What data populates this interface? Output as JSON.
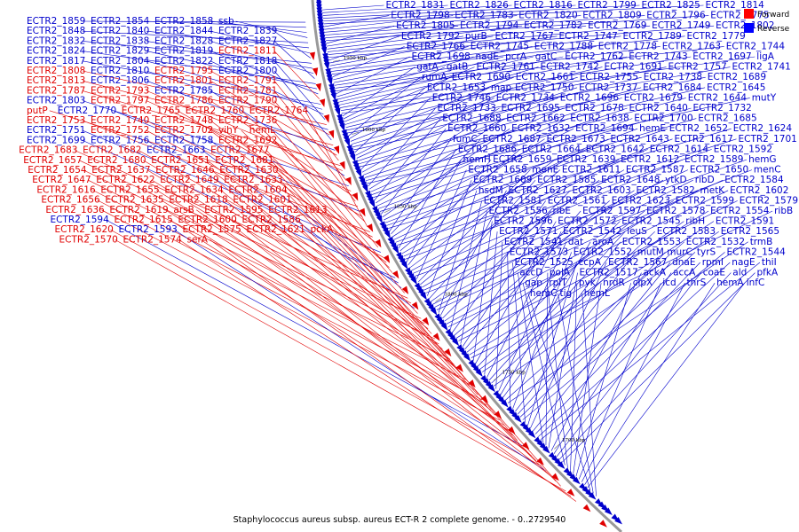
{
  "title": "Staphylococcus aureus subsp. aureus ECT-R 2 complete genome. - 0..2729540",
  "legend": [
    {
      "label": "Forward",
      "color": "#ff0000"
    },
    {
      "label": "Reverse",
      "color": "#0000ff"
    }
  ],
  "colors": {
    "forward": "#e00000",
    "reverse": "#0000cc",
    "backbone": "#999999"
  },
  "ticks": [
    "1950 kbp",
    "1900 kbp",
    "1850 kbp",
    "1800 kbp",
    "1750 kbp",
    "1700 kbp"
  ],
  "left_labels": [
    {
      "t": "ECTR2_1859",
      "s": "r"
    },
    {
      "t": "ECTR2_1854",
      "s": "r"
    },
    {
      "t": "ECTR2_1858",
      "s": "r"
    },
    {
      "t": "ssb",
      "s": "r"
    },
    {
      "t": "ECTR2_1848",
      "s": "r"
    },
    {
      "t": "ECTR2_1840",
      "s": "r"
    },
    {
      "t": "ECTR2_1844",
      "s": "r"
    },
    {
      "t": "ECTR2_1839",
      "s": "r"
    },
    {
      "t": "ECTR2_1832",
      "s": "r"
    },
    {
      "t": "ECTR2_1838",
      "s": "r"
    },
    {
      "t": "ECTR2_1828",
      "s": "r"
    },
    {
      "t": "ECTR2_1827",
      "s": "r"
    },
    {
      "t": "ECTR2_1824",
      "s": "r"
    },
    {
      "t": "ECTR2_1829",
      "s": "r"
    },
    {
      "t": "ECTR2_1819",
      "s": "r"
    },
    {
      "t": "ECTR2_1811",
      "s": "f"
    },
    {
      "t": "ECTR2_1817",
      "s": "r"
    },
    {
      "t": "ECTR2_1804",
      "s": "r"
    },
    {
      "t": "ECTR2_1822",
      "s": "r"
    },
    {
      "t": "ECTR2_1818",
      "s": "r"
    },
    {
      "t": "ECTR2_1808",
      "s": "f"
    },
    {
      "t": "ECTR2_1810",
      "s": "r"
    },
    {
      "t": "ECTR2_1795",
      "s": "f"
    },
    {
      "t": "ECTR2_1800",
      "s": "r"
    },
    {
      "t": "ECTR2_1813",
      "s": "f"
    },
    {
      "t": "ECTR2_1806",
      "s": "r"
    },
    {
      "t": "ECTR2_1801",
      "s": "f"
    },
    {
      "t": "ECTR2_1791",
      "s": "f"
    },
    {
      "t": "ECTR2_1787",
      "s": "f"
    },
    {
      "t": "ECTR2_1793",
      "s": "f"
    },
    {
      "t": "ECTR2_1785",
      "s": "r"
    },
    {
      "t": "ECTR2_1781",
      "s": "f"
    },
    {
      "t": "ECTR2_1803",
      "s": "r"
    },
    {
      "t": "ECTR2_1797",
      "s": "f"
    },
    {
      "t": "ECTR2_1786",
      "s": "f"
    },
    {
      "t": "ECTR2_1790",
      "s": "f"
    },
    {
      "t": "putP",
      "s": "f"
    },
    {
      "t": "ECTR2_1770",
      "s": "r"
    },
    {
      "t": "ECTR2_1765",
      "s": "f"
    },
    {
      "t": "ECTR2_1760",
      "s": "f"
    },
    {
      "t": "ECTR2_1764",
      "s": "f"
    },
    {
      "t": "ECTR2_1753",
      "s": "f"
    },
    {
      "t": "ECTR2_1740",
      "s": "f"
    },
    {
      "t": "ECTR2_1748",
      "s": "f"
    },
    {
      "t": "ECTR2_1736",
      "s": "f"
    },
    {
      "t": "ECTR2_1751",
      "s": "r"
    },
    {
      "t": "ECTR2_1752",
      "s": "f"
    },
    {
      "t": "ECTR2_1702",
      "s": "f"
    },
    {
      "t": "vihY",
      "s": "f"
    },
    {
      "t": "hemL",
      "s": "f"
    },
    {
      "t": "ECTR2_1699",
      "s": "r"
    },
    {
      "t": "ECTR2_1756",
      "s": "r"
    },
    {
      "t": "ECTR2_1758",
      "s": "r"
    },
    {
      "t": "ECTR2_1692",
      "s": "f"
    },
    {
      "t": "ECTR2_1683",
      "s": "f"
    },
    {
      "t": "ECTR2_1682",
      "s": "f"
    },
    {
      "t": "ECTR2_1663",
      "s": "r"
    },
    {
      "t": "ECTR2_1677",
      "s": "f"
    },
    {
      "t": "ECTR2_1657",
      "s": "f"
    },
    {
      "t": "ECTR2_1680",
      "s": "f"
    },
    {
      "t": "ECTR2_1651",
      "s": "f"
    },
    {
      "t": "ECTR2_1681",
      "s": "f"
    },
    {
      "t": "ECTR2_1654",
      "s": "f"
    },
    {
      "t": "ECTR2_1637",
      "s": "f"
    },
    {
      "t": "ECTR2_1646",
      "s": "f"
    },
    {
      "t": "ECTR2_1630",
      "s": "f"
    },
    {
      "t": "ECTR2_1647",
      "s": "f"
    },
    {
      "t": "ECTR2_1622",
      "s": "f"
    },
    {
      "t": "ECTR2_1649",
      "s": "f"
    },
    {
      "t": "ECTR2_1633",
      "s": "f"
    },
    {
      "t": "ECTR2_1616",
      "s": "f"
    },
    {
      "t": "ECTR2_1655",
      "s": "f"
    },
    {
      "t": "ECTR2_1634",
      "s": "f"
    },
    {
      "t": "ECTR2_1604",
      "s": "f"
    },
    {
      "t": "ECTR2_1656",
      "s": "f"
    },
    {
      "t": "ECTR2_1635",
      "s": "f"
    },
    {
      "t": "ECTR2_1618",
      "s": "f"
    },
    {
      "t": "ECTR2_1601",
      "s": "f"
    },
    {
      "t": "ECTR2_1636",
      "s": "f"
    },
    {
      "t": "ECTR2_1619",
      "s": "f"
    },
    {
      "t": "arsB",
      "s": "f"
    },
    {
      "t": "ECTR2_1595",
      "s": "f"
    },
    {
      "t": "ECTR2_1613",
      "s": "f"
    },
    {
      "t": "ECTR2_1594",
      "s": "r"
    },
    {
      "t": "ECTR2_1615",
      "s": "f"
    },
    {
      "t": "ECTR2_1600",
      "s": "f"
    },
    {
      "t": "ECTR2_1586",
      "s": "f"
    },
    {
      "t": "ECTR2_1620",
      "s": "f"
    },
    {
      "t": "ECTR2_1593",
      "s": "r"
    },
    {
      "t": "ECTR2_1575",
      "s": "f"
    },
    {
      "t": "ECTR2_1621",
      "s": "f"
    },
    {
      "t": "pckA",
      "s": "f"
    },
    {
      "t": "ECTR2_1570",
      "s": "f"
    },
    {
      "t": "ECTR2_1574",
      "s": "f"
    },
    {
      "t": "serA",
      "s": "f"
    }
  ],
  "right_labels": [
    "ECTR2_1831",
    "ECTR2_1826",
    "ECTR2_1816",
    "ECTR2_1799",
    "ECTR2_1825",
    "ECTR2_1814",
    "ECTR2_1798",
    "ECTR2_1783",
    "ECTR2_1820",
    "ECTR2_1809",
    "ECTR2_1796",
    "ECTR2_1775",
    "ECTR2_1805",
    "ECTR2_1794",
    "ECTR2_1782",
    "ECTR2_1769",
    "ECTR2_1749",
    "ECTR2_1802",
    "ECTR2_1792",
    "purB",
    "ECTR2_1767",
    "ECTR2_1747",
    "ECTR2_1789",
    "ECTR2_1779",
    "ECTR2_1766",
    "ECTR2_1745",
    "ECTR2_1788",
    "ECTR2_1778",
    "ECTR2_1763",
    "ECTR2_1744",
    "ECTR2_1698",
    "nadE",
    "pcrA",
    "gatC",
    "ECTR2_1762",
    "ECTR2_1743",
    "ECTR2_1697",
    "ligA",
    "gatA",
    "gatB",
    "ECTR2_1761",
    "ECTR2_1742",
    "ECTR2_1691",
    "ECTR2_1757",
    "ECTR2_1741",
    "rumA",
    "ECTR2_1690",
    "ECTR2_1661",
    "ECTR2_1755",
    "ECTR2_1738",
    "ECTR2_1689",
    "ECTR2_1653",
    "map",
    "ECTR2_1750",
    "ECTR2_1737",
    "ECTR2_1684",
    "ECTR2_1645",
    "ECTR2_1746",
    "ECTR2_1734",
    "ECTR2_1696",
    "ECTR2_1679",
    "ECTR2_1644",
    "mutY",
    "ECTR2_1733",
    "ECTR2_1695",
    "ECTR2_1678",
    "ECTR2_1640",
    "ECTR2_1732",
    "ECTR2_1688",
    "ECTR2_1662",
    "ECTR2_1638",
    "ECTR2_1700",
    "ECTR2_1685",
    "ECTR2_1660",
    "ECTR2_1632",
    "ECTR2_1694",
    "hemE",
    "ECTR2_1652",
    "ECTR2_1624",
    "fumC",
    "ECTR2_1687",
    "ECTR2_1673",
    "ECTR2_1643",
    "ECTR2_1617",
    "ECTR2_1701",
    "ECTR2_1686",
    "ECTR2_1664",
    "ECTR2_1642",
    "ECTR2_1614",
    "ECTR2_1592",
    "hemH",
    "ECTR2_1659",
    "ECTR2_1639",
    "ECTR2_1612",
    "ECTR2_1589",
    "hemG",
    "ECTR2_1658",
    "menE",
    "ECTR2_1611",
    "ECTR2_1587",
    "ECTR2_1650",
    "menC",
    "ECTR2_1609",
    "ECTR2_1585",
    "ECTR2_1648",
    "ytkD",
    "ribD",
    "ECTR2_1584",
    "hsdM",
    "ECTR2_1627",
    "ECTR2_1603",
    "ECTR2_1582",
    "metK",
    "ECTR2_1602",
    "ECTR2_1581",
    "ECTR2_1561",
    "ECTR2_1623",
    "ECTR2_1599",
    "ECTR2_1579",
    "ECTR2_1556",
    "ribE",
    "ECTR2_1597",
    "ECTR2_1578",
    "ECTR2_1554",
    "ribB",
    "ECTR2_1596",
    "ECTR2_1572",
    "ECTR2_1545",
    "ribH",
    "ECTR2_1591",
    "ECTR2_1571",
    "ECTR2_1542",
    "leuS",
    "ECTR2_1583",
    "ECTR2_1565",
    "ECTR2_1541",
    "dat",
    "aroA",
    "ECTR2_1553",
    "ECTR2_1532",
    "trmB",
    "ECTR2_1573",
    "ECTR2_1552",
    "mutM",
    "murC",
    "tyrS",
    "ECTR2_1544",
    "ECTR2_1525",
    "ccpA",
    "ECTR2_1567",
    "dnaE",
    "rpmI",
    "nagE",
    "thiI",
    "accD",
    "polA",
    "ECTR2_1517",
    "ackA",
    "accA",
    "coaE",
    "ald",
    "pfkA",
    "gap",
    "rplT",
    "pyk",
    "nrdR",
    "clpX",
    "icd",
    "thrS",
    "hemA",
    "infC",
    "hemC",
    "tig",
    "hemL"
  ]
}
